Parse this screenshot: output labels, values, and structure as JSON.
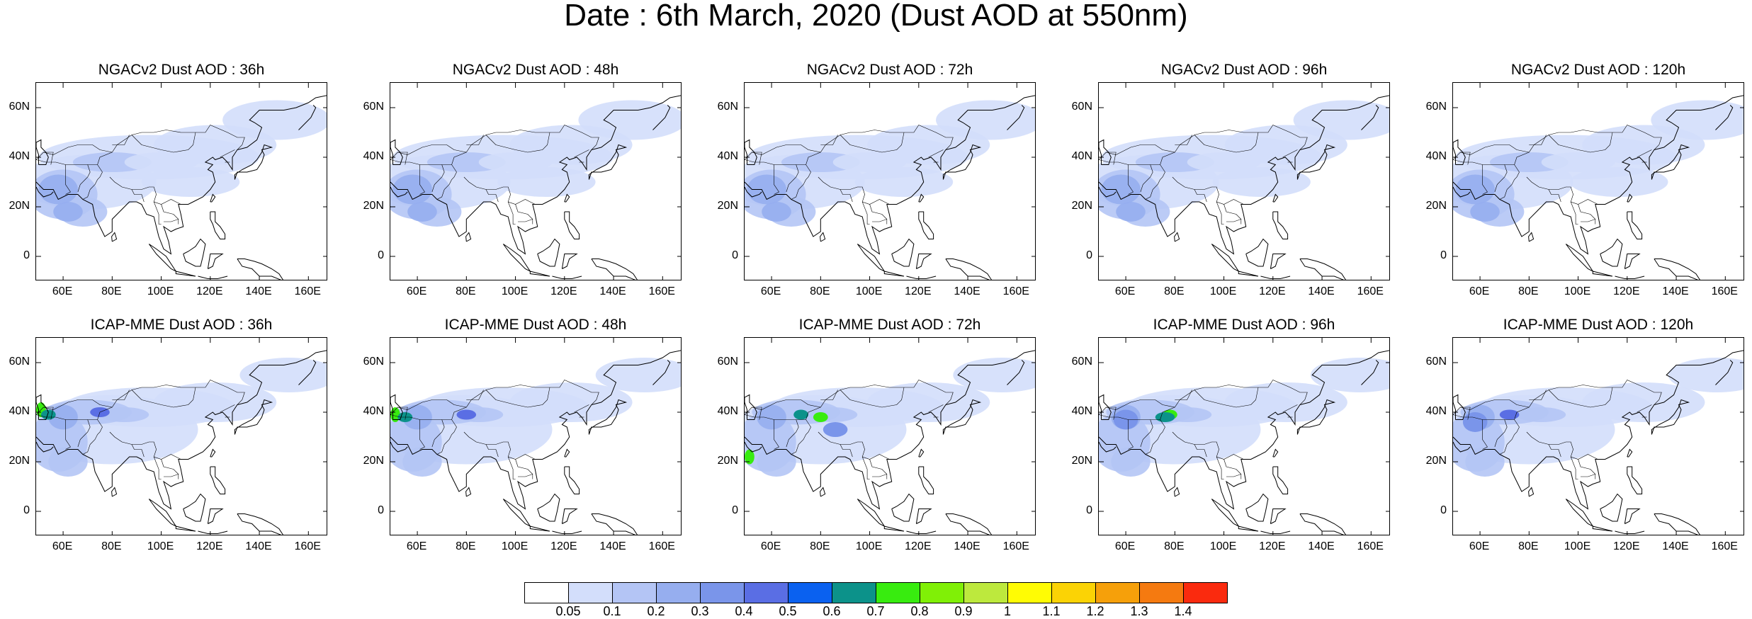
{
  "title": "Date : 6th March, 2020 (Dust AOD at 550nm)",
  "lat_labels": [
    "60N",
    "40N",
    "20N",
    "0"
  ],
  "lon_labels": [
    "60E",
    "80E",
    "100E",
    "120E",
    "140E",
    "160E"
  ],
  "panels": [
    {
      "title": "NGACv2 Dust AOD : 36h",
      "model": "NGACv2",
      "lead": "36h",
      "peak": "low"
    },
    {
      "title": "NGACv2 Dust AOD : 48h",
      "model": "NGACv2",
      "lead": "48h",
      "peak": "low"
    },
    {
      "title": "NGACv2 Dust AOD : 72h",
      "model": "NGACv2",
      "lead": "72h",
      "peak": "low"
    },
    {
      "title": "NGACv2 Dust AOD : 96h",
      "model": "NGACv2",
      "lead": "96h",
      "peak": "low"
    },
    {
      "title": "NGACv2 Dust AOD : 120h",
      "model": "NGACv2",
      "lead": "120h",
      "peak": "low"
    },
    {
      "title": "ICAP-MME Dust AOD : 36h",
      "model": "ICAP-MME",
      "lead": "36h",
      "peak": "green"
    },
    {
      "title": "ICAP-MME Dust AOD : 48h",
      "model": "ICAP-MME",
      "lead": "48h",
      "peak": "green"
    },
    {
      "title": "ICAP-MME Dust AOD : 72h",
      "model": "ICAP-MME",
      "lead": "72h",
      "peak": "green"
    },
    {
      "title": "ICAP-MME Dust AOD : 96h",
      "model": "ICAP-MME",
      "lead": "96h",
      "peak": "green"
    },
    {
      "title": "ICAP-MME Dust AOD : 120h",
      "model": "ICAP-MME",
      "lead": "120h",
      "peak": "low"
    }
  ],
  "colorbar": {
    "labels": [
      "0.05",
      "0.1",
      "0.2",
      "0.3",
      "0.4",
      "0.5",
      "0.6",
      "0.7",
      "0.8",
      "0.9",
      "1",
      "1.1",
      "1.2",
      "1.3",
      "1.4"
    ],
    "colors": [
      "#ffffff",
      "#d3defb",
      "#b4c5f5",
      "#96aeef",
      "#7a95ea",
      "#5a6ee4",
      "#0a61f0",
      "#0c928a",
      "#38ec0f",
      "#80f006",
      "#bde93d",
      "#fffc04",
      "#fbd305",
      "#f6a00a",
      "#f57a10",
      "#fa2a0e"
    ]
  }
}
